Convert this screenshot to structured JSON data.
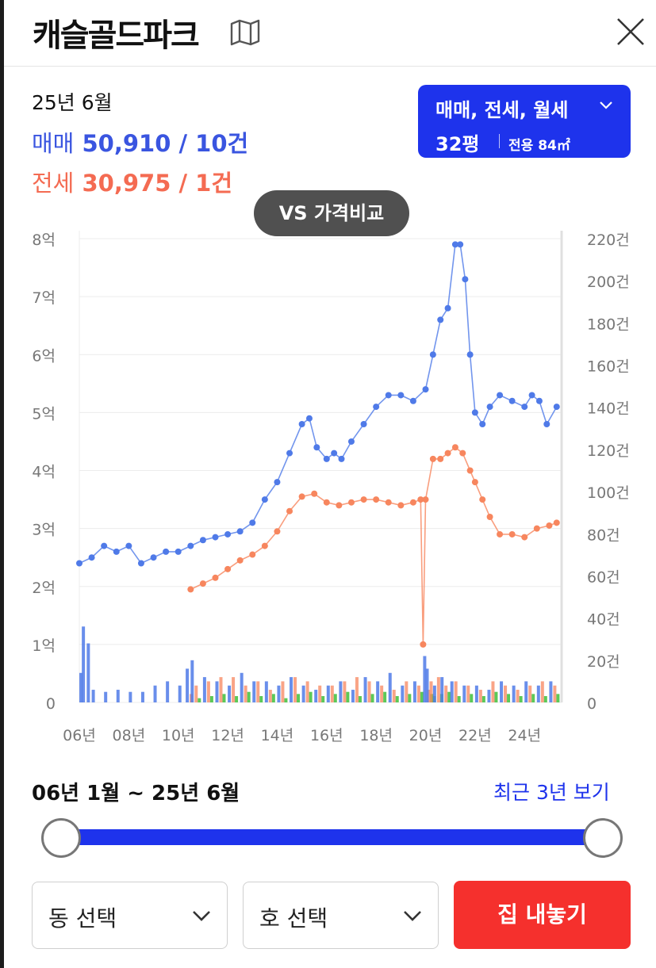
{
  "header": {
    "title": "캐슬골드파크",
    "map_icon": "map-icon",
    "close_icon": "close-icon"
  },
  "summary": {
    "date": "25년 6월",
    "sale_label": "매매",
    "sale_value": "50,910 / 10건",
    "rent_label": "전세",
    "rent_value": "30,975 / 1건"
  },
  "type_selector": {
    "types": "매매, 전세, 월세",
    "pyeong": "32평",
    "exclusive": "전용 84㎡"
  },
  "compare_button": {
    "label": "VS 가격비교"
  },
  "colors": {
    "sale": "#4f7ae8",
    "rent": "#f7865e",
    "monthly": "#3fbf3a",
    "accent": "#1e33ec",
    "danger": "#f5302d"
  },
  "chart_data": {
    "type": "line",
    "title": "",
    "x_ticks": [
      "06년",
      "08년",
      "10년",
      "12년",
      "14년",
      "16년",
      "18년",
      "20년",
      "22년",
      "24년"
    ],
    "y_left_ticks": [
      "0",
      "1억",
      "2억",
      "3억",
      "4억",
      "5억",
      "6억",
      "7억",
      "8억"
    ],
    "y_right_ticks": [
      "0",
      "20건",
      "40건",
      "60건",
      "80건",
      "100건",
      "120건",
      "140건",
      "160건",
      "180건",
      "200건",
      "220건"
    ],
    "y_left_range": [
      0,
      8
    ],
    "y_right_range": [
      0,
      220
    ],
    "x_range": [
      2006,
      2025.5
    ],
    "series": [
      {
        "key": "sale",
        "x": [
          2006.0,
          2006.5,
          2007.0,
          2007.5,
          2008.0,
          2008.5,
          2009.0,
          2009.5,
          2010.0,
          2010.5,
          2011.0,
          2011.5,
          2012.0,
          2012.5,
          2013.0,
          2013.5,
          2014.0,
          2014.5,
          2015.0,
          2015.3,
          2015.6,
          2016.0,
          2016.3,
          2016.6,
          2017.0,
          2017.5,
          2018.0,
          2018.5,
          2019.0,
          2019.5,
          2020.0,
          2020.3,
          2020.6,
          2020.9,
          2021.2,
          2021.4,
          2021.6,
          2021.8,
          2022.0,
          2022.3,
          2022.6,
          2023.0,
          2023.5,
          2024.0,
          2024.3,
          2024.6,
          2024.9,
          2025.3
        ],
        "values": [
          2.4,
          2.5,
          2.7,
          2.6,
          2.7,
          2.4,
          2.5,
          2.6,
          2.6,
          2.7,
          2.8,
          2.85,
          2.9,
          2.95,
          3.1,
          3.5,
          3.8,
          4.3,
          4.8,
          4.9,
          4.4,
          4.2,
          4.3,
          4.2,
          4.5,
          4.8,
          5.1,
          5.3,
          5.3,
          5.2,
          5.4,
          6.0,
          6.6,
          6.8,
          7.9,
          7.9,
          7.3,
          6.0,
          5.0,
          4.8,
          5.1,
          5.3,
          5.2,
          5.1,
          5.3,
          5.2,
          4.8,
          5.1
        ]
      },
      {
        "key": "rent",
        "x": [
          2010.5,
          2011.0,
          2011.5,
          2012.0,
          2012.5,
          2013.0,
          2013.5,
          2014.0,
          2014.5,
          2015.0,
          2015.5,
          2016.0,
          2016.5,
          2017.0,
          2017.5,
          2018.0,
          2018.5,
          2019.0,
          2019.5,
          2019.8,
          2019.9,
          2020.0,
          2020.3,
          2020.6,
          2020.9,
          2021.2,
          2021.5,
          2021.8,
          2022.0,
          2022.3,
          2022.6,
          2023.0,
          2023.5,
          2024.0,
          2024.5,
          2025.0,
          2025.3
        ],
        "values": [
          1.95,
          2.05,
          2.15,
          2.3,
          2.45,
          2.55,
          2.7,
          2.95,
          3.3,
          3.55,
          3.6,
          3.45,
          3.4,
          3.45,
          3.5,
          3.5,
          3.45,
          3.4,
          3.45,
          3.5,
          1.0,
          3.5,
          4.2,
          4.2,
          4.3,
          4.4,
          4.3,
          4.0,
          3.8,
          3.5,
          3.2,
          2.9,
          2.9,
          2.85,
          3.0,
          3.05,
          3.1
        ]
      }
    ],
    "volume": {
      "x": [
        2006.0,
        2006.1,
        2006.3,
        2006.5,
        2007.0,
        2007.5,
        2008.0,
        2008.5,
        2009.0,
        2009.5,
        2010.0,
        2010.3,
        2010.5,
        2011.0,
        2011.5,
        2012.0,
        2012.5,
        2013.0,
        2013.5,
        2014.0,
        2014.5,
        2015.0,
        2015.5,
        2016.0,
        2016.5,
        2017.0,
        2017.5,
        2018.0,
        2018.5,
        2019.0,
        2019.5,
        2019.9,
        2020.0,
        2020.3,
        2020.6,
        2021.0,
        2021.5,
        2022.0,
        2022.5,
        2023.0,
        2023.5,
        2024.0,
        2024.5,
        2025.0
      ],
      "sale": [
        14,
        36,
        28,
        6,
        5,
        6,
        5,
        5,
        8,
        10,
        8,
        16,
        20,
        12,
        10,
        8,
        14,
        10,
        10,
        8,
        12,
        8,
        6,
        8,
        10,
        6,
        12,
        10,
        14,
        8,
        10,
        22,
        16,
        8,
        12,
        10,
        8,
        8,
        6,
        10,
        8,
        10,
        8,
        10
      ],
      "rent": [
        0,
        0,
        0,
        0,
        0,
        0,
        0,
        0,
        0,
        0,
        0,
        4,
        8,
        10,
        12,
        12,
        8,
        10,
        6,
        10,
        12,
        10,
        8,
        8,
        10,
        12,
        10,
        8,
        6,
        10,
        8,
        6,
        10,
        12,
        8,
        10,
        8,
        6,
        10,
        8,
        6,
        8,
        10,
        8
      ],
      "monthly": [
        0,
        0,
        0,
        0,
        0,
        0,
        0,
        0,
        0,
        0,
        0,
        0,
        2,
        3,
        4,
        3,
        5,
        3,
        4,
        2,
        4,
        5,
        3,
        4,
        5,
        3,
        4,
        5,
        3,
        4,
        5,
        4,
        3,
        4,
        5,
        3,
        4,
        3,
        5,
        4,
        3,
        4,
        3,
        4
      ]
    }
  },
  "period": {
    "range": "06년 1월 ~ 25년 6월",
    "recent_link": "최근 3년 보기"
  },
  "selects": {
    "dong": "동 선택",
    "ho": "호 선택"
  },
  "list_button": {
    "label": "집 내놓기"
  }
}
